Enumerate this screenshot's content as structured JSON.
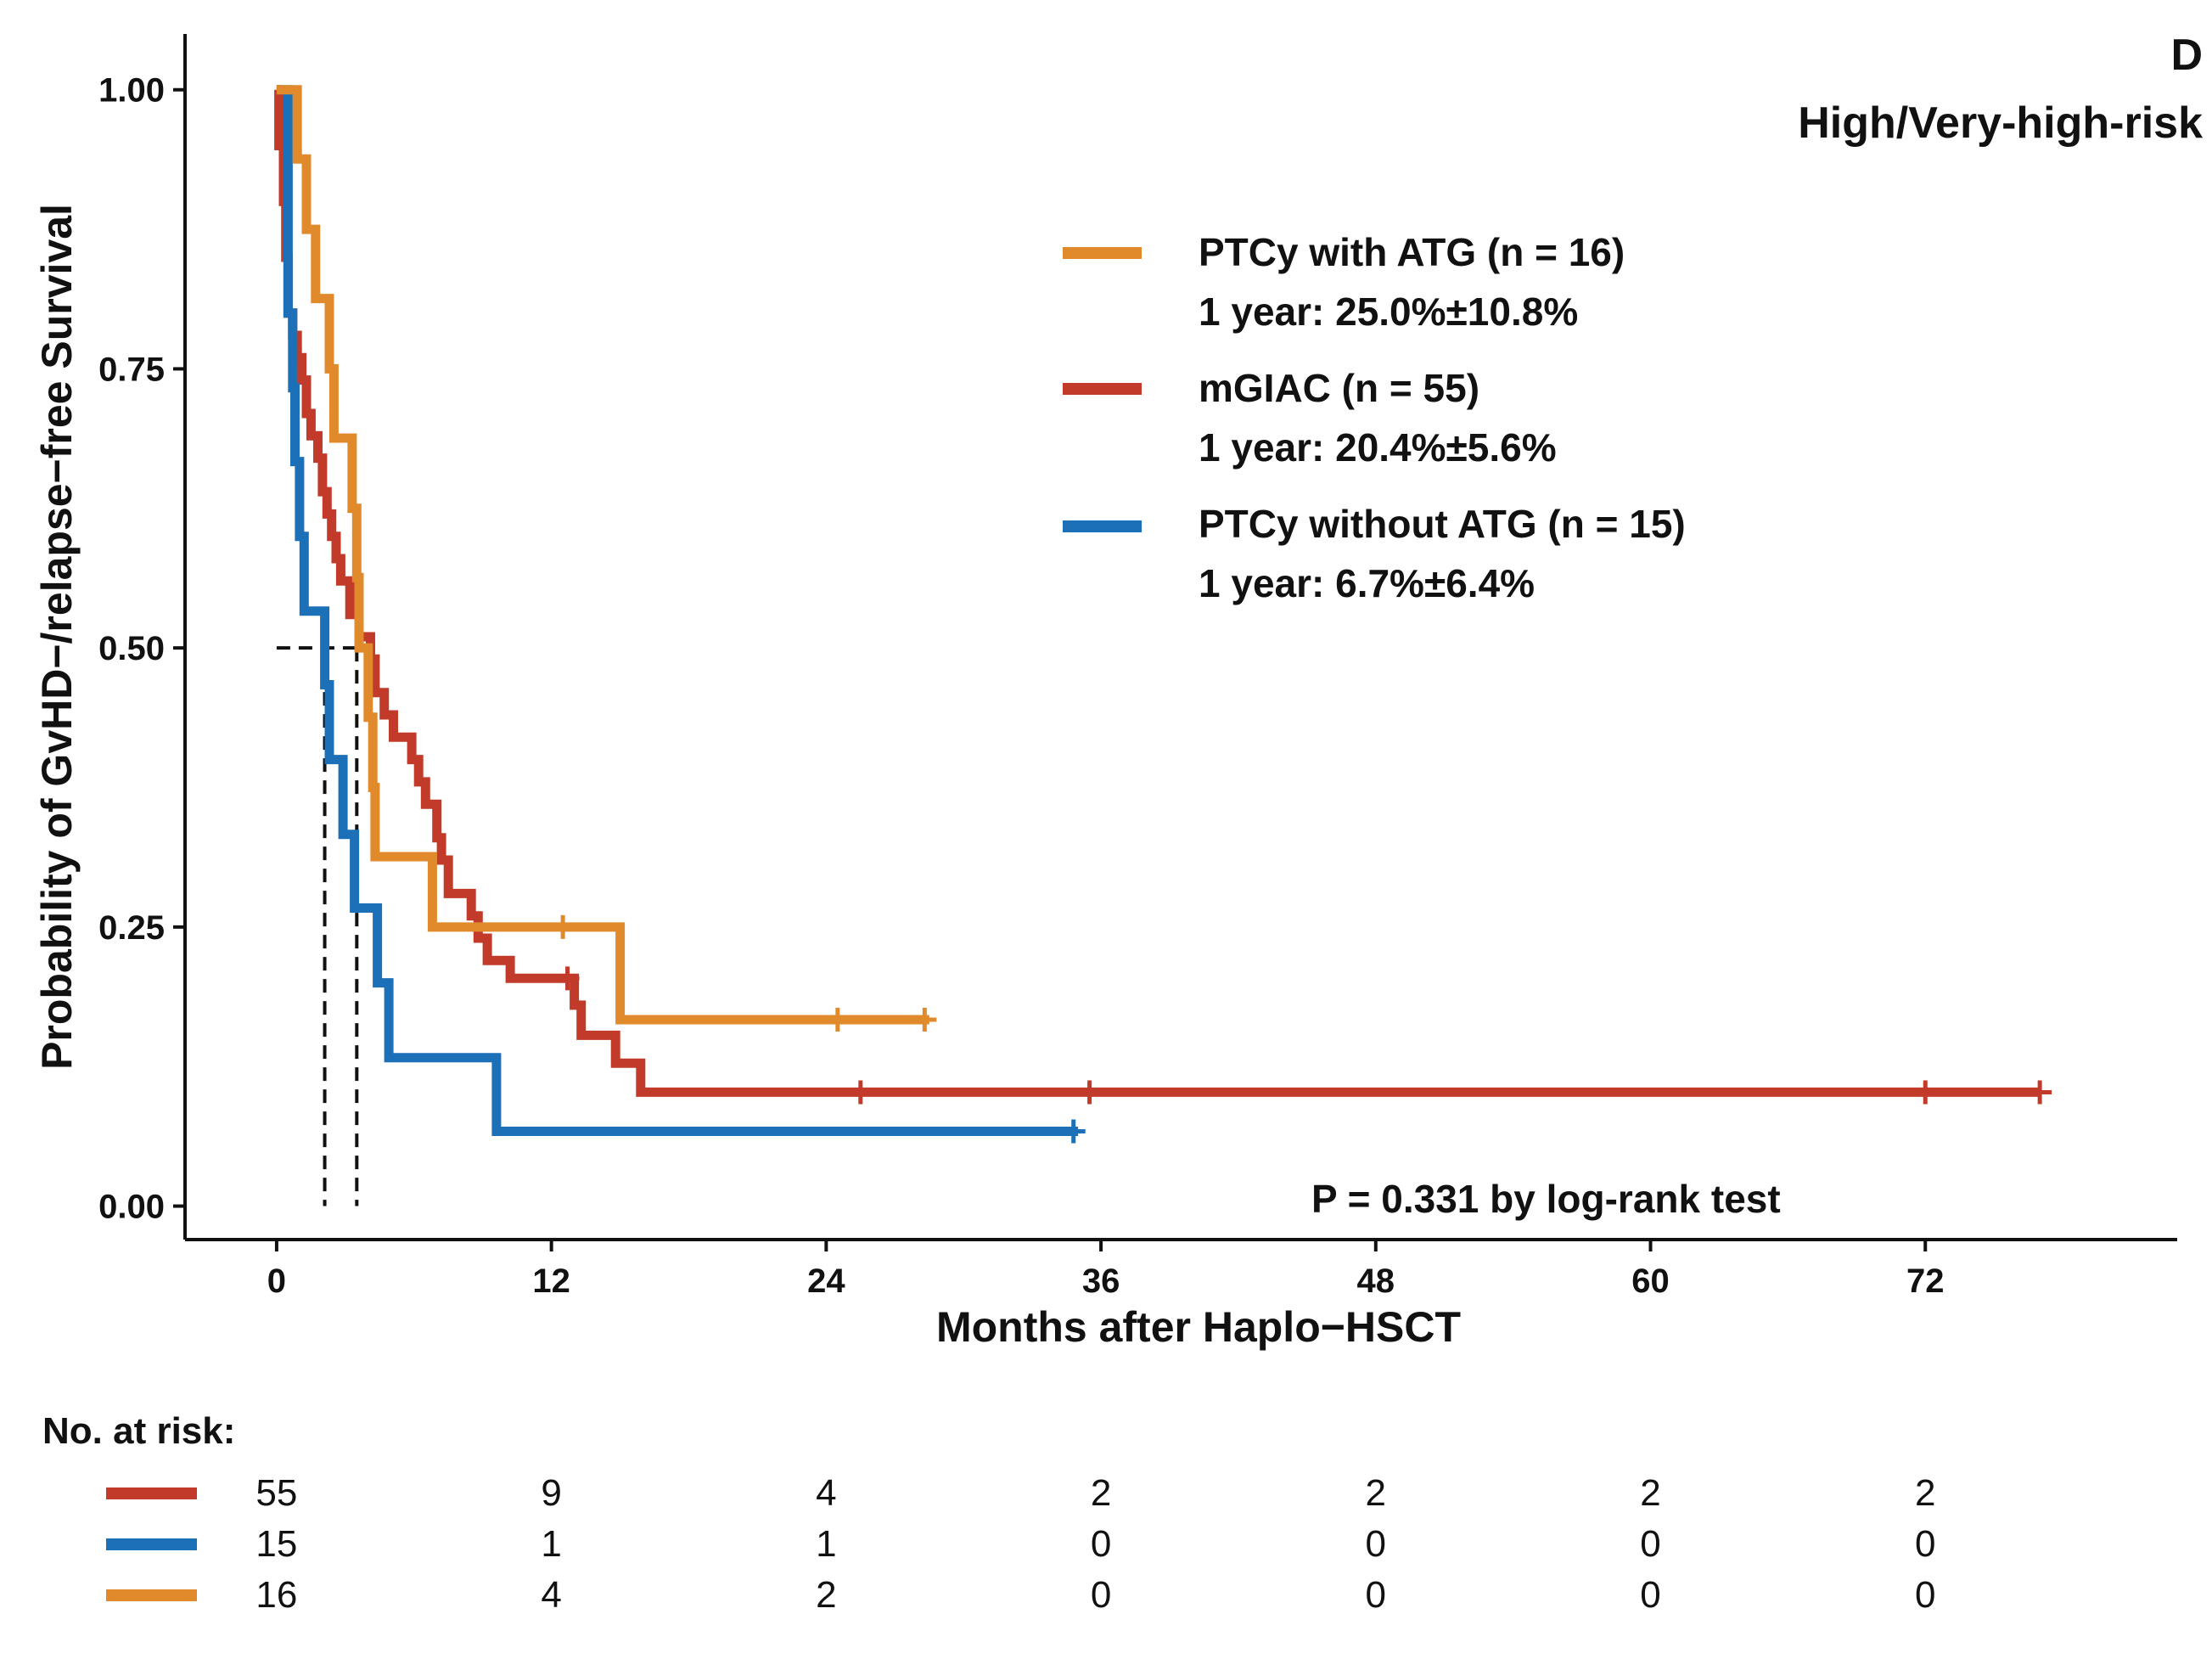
{
  "chart_data": {
    "type": "line",
    "panel_label": "D",
    "title": "High/Very-high-risk",
    "xlabel": "Months after Haplo−HSCT",
    "ylabel": "Probability of GvHD−/relapse−free Survival",
    "xlim": [
      -4,
      83
    ],
    "ylim": [
      -0.03,
      1.05
    ],
    "x_ticks": [
      0,
      12,
      24,
      36,
      48,
      60,
      72
    ],
    "x_tick_labels": [
      "0",
      "12",
      "24",
      "36",
      "48",
      "60",
      "72"
    ],
    "y_ticks": [
      0,
      0.25,
      0.5,
      0.75,
      1.0
    ],
    "y_tick_labels": [
      "0.00",
      "0.25",
      "0.50",
      "0.75",
      "1.00"
    ],
    "annotation": "P = 0.331 by log-rank test",
    "median_lines": [
      {
        "x": 2.1,
        "y": 0.5
      },
      {
        "x": 3.5,
        "y": 0.5
      }
    ],
    "median_hline_start": 0,
    "series": [
      {
        "name": "PTCy with ATG (n = 16)",
        "one_year": "1 year: 25.0%±10.8%",
        "color": "#E08A2C",
        "steps": [
          [
            0,
            1.0
          ],
          [
            0.9,
            0.938
          ],
          [
            1.3,
            0.875
          ],
          [
            1.7,
            0.813
          ],
          [
            2.3,
            0.75
          ],
          [
            2.5,
            0.688
          ],
          [
            3.3,
            0.625
          ],
          [
            3.5,
            0.563
          ],
          [
            3.6,
            0.5
          ],
          [
            4.0,
            0.438
          ],
          [
            4.2,
            0.375
          ],
          [
            4.3,
            0.313
          ],
          [
            6.8,
            0.25
          ],
          [
            15.0,
            0.167
          ],
          [
            28.5,
            0.167
          ]
        ],
        "censor_x": [
          12.5,
          24.5,
          28.3
        ]
      },
      {
        "name": "mGIAC (n = 55)",
        "one_year": "1 year: 20.4%±5.6%",
        "color": "#C23B2A",
        "steps": [
          [
            0,
            1.0
          ],
          [
            0.1,
            0.95
          ],
          [
            0.3,
            0.9
          ],
          [
            0.4,
            0.85
          ],
          [
            0.5,
            0.8
          ],
          [
            0.7,
            0.78
          ],
          [
            0.9,
            0.76
          ],
          [
            1.1,
            0.74
          ],
          [
            1.3,
            0.71
          ],
          [
            1.5,
            0.69
          ],
          [
            1.8,
            0.67
          ],
          [
            2.0,
            0.64
          ],
          [
            2.2,
            0.62
          ],
          [
            2.4,
            0.6
          ],
          [
            2.6,
            0.58
          ],
          [
            2.8,
            0.56
          ],
          [
            3.2,
            0.53
          ],
          [
            3.6,
            0.51
          ],
          [
            4.1,
            0.49
          ],
          [
            4.3,
            0.46
          ],
          [
            4.7,
            0.44
          ],
          [
            5.1,
            0.42
          ],
          [
            5.9,
            0.4
          ],
          [
            6.2,
            0.38
          ],
          [
            6.5,
            0.36
          ],
          [
            7.0,
            0.33
          ],
          [
            7.2,
            0.31
          ],
          [
            7.5,
            0.28
          ],
          [
            8.5,
            0.26
          ],
          [
            8.8,
            0.24
          ],
          [
            9.2,
            0.22
          ],
          [
            10.0,
            0.22
          ],
          [
            10.2,
            0.204
          ],
          [
            13.0,
            0.18
          ],
          [
            13.3,
            0.153
          ],
          [
            14.8,
            0.128
          ],
          [
            15.9,
            0.102
          ],
          [
            77.0,
            0.102
          ]
        ],
        "censor_x": [
          12.7,
          25.5,
          35.5,
          72.0,
          77.0
        ]
      },
      {
        "name": "PTCy without ATG (n = 15)",
        "one_year": "1 year: 6.7%±6.4%",
        "color": "#1C70B8",
        "steps": [
          [
            0,
            1.0
          ],
          [
            0.5,
            0.8
          ],
          [
            0.7,
            0.733
          ],
          [
            0.8,
            0.667
          ],
          [
            1.0,
            0.6
          ],
          [
            1.2,
            0.533
          ],
          [
            2.1,
            0.467
          ],
          [
            2.3,
            0.4
          ],
          [
            2.9,
            0.333
          ],
          [
            3.4,
            0.267
          ],
          [
            4.4,
            0.2
          ],
          [
            4.9,
            0.133
          ],
          [
            9.6,
            0.067
          ],
          [
            35.0,
            0.067
          ]
        ],
        "censor_x": [
          34.8
        ]
      }
    ],
    "risk_table": {
      "title": "No. at risk:",
      "times": [
        0,
        12,
        24,
        36,
        48,
        60,
        72
      ],
      "rows": [
        {
          "color": "#C23B2A",
          "values": [
            "55",
            "9",
            "4",
            "2",
            "2",
            "2",
            "2"
          ]
        },
        {
          "color": "#1C70B8",
          "values": [
            "15",
            "1",
            "1",
            "0",
            "0",
            "0",
            "0"
          ]
        },
        {
          "color": "#E08A2C",
          "values": [
            "16",
            "4",
            "2",
            "0",
            "0",
            "0",
            "0"
          ]
        }
      ]
    }
  }
}
